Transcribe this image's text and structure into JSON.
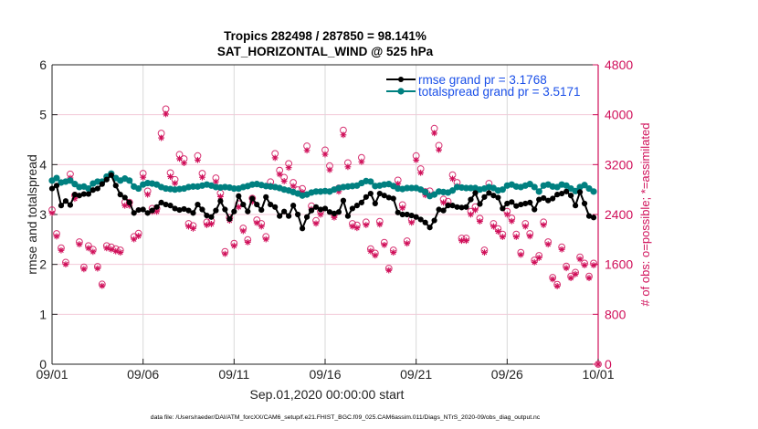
{
  "chart_data": {
    "type": "line",
    "title": [
      "Tropics 282498 / 287850 = 98.141%",
      "SAT_HORIZONTAL_WIND @ 525 hPa"
    ],
    "xlabel": "Sep.01,2020 00:00:00 start",
    "ylabel": "rmse and totalspread",
    "y2label": "# of obs: o=possible; *=assimilated",
    "footnote": "data file: /Users/raeder/DAI/ATM_forcXX/CAM6_setup/f.e21.FHIST_BGC.f09_025.CAM6assim.011/Diags_NTrS_2020-09/obs_diag_output.nc",
    "x_units": "days since Sep.01,2020 00:00:00",
    "xlim": [
      0,
      30
    ],
    "ylim": [
      0,
      6
    ],
    "y2lim": [
      0,
      4800
    ],
    "grid": true,
    "legend_position": "top-right",
    "xticks": [
      {
        "value": 0,
        "label": "09/01"
      },
      {
        "value": 5,
        "label": "09/06"
      },
      {
        "value": 10,
        "label": "09/11"
      },
      {
        "value": 15,
        "label": "09/16"
      },
      {
        "value": 20,
        "label": "09/21"
      },
      {
        "value": 25,
        "label": "09/26"
      },
      {
        "value": 30,
        "label": "10/01"
      }
    ],
    "yticks": [
      {
        "value": 0,
        "label": "0"
      },
      {
        "value": 1,
        "label": "1"
      },
      {
        "value": 2,
        "label": "2"
      },
      {
        "value": 3,
        "label": "3"
      },
      {
        "value": 4,
        "label": "4"
      },
      {
        "value": 5,
        "label": "5"
      },
      {
        "value": 6,
        "label": "6"
      }
    ],
    "y2ticks": [
      {
        "value": 0,
        "label": "0"
      },
      {
        "value": 800,
        "label": "800"
      },
      {
        "value": 1600,
        "label": "1600"
      },
      {
        "value": 2400,
        "label": "2400"
      },
      {
        "value": 3200,
        "label": "3200"
      },
      {
        "value": 4000,
        "label": "4000"
      },
      {
        "value": 4800,
        "label": "4800"
      }
    ],
    "x": [
      0,
      0.25,
      0.5,
      0.75,
      1,
      1.25,
      1.5,
      1.75,
      2,
      2.25,
      2.5,
      2.75,
      3,
      3.25,
      3.5,
      3.75,
      4,
      4.25,
      4.5,
      4.75,
      5,
      5.25,
      5.5,
      5.75,
      6,
      6.25,
      6.5,
      6.75,
      7,
      7.25,
      7.5,
      7.75,
      8,
      8.25,
      8.5,
      8.75,
      9,
      9.25,
      9.5,
      9.75,
      10,
      10.25,
      10.5,
      10.75,
      11,
      11.25,
      11.5,
      11.75,
      12,
      12.25,
      12.5,
      12.75,
      13,
      13.25,
      13.5,
      13.75,
      14,
      14.25,
      14.5,
      14.75,
      15,
      15.25,
      15.5,
      15.75,
      16,
      16.25,
      16.5,
      16.75,
      17,
      17.25,
      17.5,
      17.75,
      18,
      18.25,
      18.5,
      18.75,
      19,
      19.25,
      19.5,
      19.75,
      20,
      20.25,
      20.5,
      20.75,
      21,
      21.25,
      21.5,
      21.75,
      22,
      22.25,
      22.5,
      22.75,
      23,
      23.25,
      23.5,
      23.75,
      24,
      24.25,
      24.5,
      24.75,
      25,
      25.25,
      25.5,
      25.75,
      26,
      26.25,
      26.5,
      26.75,
      27,
      27.25,
      27.5,
      27.75,
      28,
      28.25,
      28.5,
      28.75,
      29,
      29.25,
      29.5,
      29.75,
      30
    ],
    "series": [
      {
        "name": "rmse",
        "legend_label": "rmse grand pr = 3.1768",
        "axis": "left",
        "color": "#000000",
        "values": [
          3.52,
          3.58,
          3.18,
          3.27,
          3.19,
          3.4,
          3.38,
          3.41,
          3.41,
          3.49,
          3.52,
          3.61,
          3.7,
          3.79,
          3.58,
          3.4,
          3.34,
          3.24,
          3.03,
          3.09,
          3.1,
          3.03,
          3.08,
          3.15,
          3.24,
          3.2,
          3.18,
          3.12,
          3.09,
          3.11,
          3.08,
          3.03,
          3.2,
          3.1,
          2.98,
          2.95,
          3.08,
          3.27,
          3.1,
          2.91,
          3.06,
          3.37,
          3.2,
          3.06,
          3.32,
          3.2,
          3.09,
          3.35,
          3.2,
          3.15,
          2.97,
          3.06,
          2.97,
          3.18,
          3.0,
          2.72,
          2.95,
          3.08,
          3.15,
          3.1,
          3.12,
          3.05,
          3.02,
          3.05,
          3.28,
          2.97,
          3.12,
          3.18,
          3.24,
          3.35,
          3.42,
          3.22,
          3.42,
          3.38,
          3.34,
          3.32,
          3.04,
          3.0,
          3.0,
          2.98,
          2.95,
          2.9,
          2.84,
          2.74,
          2.88,
          3.1,
          3.08,
          3.18,
          3.18,
          3.15,
          3.14,
          3.15,
          3.3,
          3.43,
          3.21,
          3.35,
          3.43,
          3.38,
          3.34,
          3.12,
          3.22,
          3.25,
          3.17,
          3.2,
          3.22,
          3.24,
          3.1,
          3.3,
          3.33,
          3.28,
          3.32,
          3.4,
          3.42,
          3.46,
          3.38,
          3.18,
          3.45,
          3.22,
          2.97,
          2.94,
          null
        ]
      },
      {
        "name": "totalspread",
        "legend_label": "totalspread grand pr = 3.5171",
        "axis": "left",
        "color": "#008080",
        "values": [
          3.68,
          3.73,
          3.64,
          3.66,
          3.68,
          3.61,
          3.55,
          3.56,
          3.52,
          3.62,
          3.66,
          3.66,
          3.76,
          3.82,
          3.73,
          3.68,
          3.72,
          3.68,
          3.56,
          3.52,
          3.6,
          3.63,
          3.62,
          3.6,
          3.55,
          3.52,
          3.51,
          3.5,
          3.51,
          3.52,
          3.55,
          3.56,
          3.56,
          3.58,
          3.6,
          3.58,
          3.55,
          3.54,
          3.55,
          3.54,
          3.52,
          3.52,
          3.55,
          3.57,
          3.6,
          3.61,
          3.59,
          3.57,
          3.56,
          3.55,
          3.53,
          3.5,
          3.48,
          3.45,
          3.42,
          3.38,
          3.4,
          3.44,
          3.46,
          3.46,
          3.47,
          3.46,
          3.5,
          3.53,
          3.55,
          3.56,
          3.57,
          3.58,
          3.63,
          3.67,
          3.66,
          3.57,
          3.58,
          3.6,
          3.61,
          3.57,
          3.52,
          3.51,
          3.53,
          3.53,
          3.53,
          3.5,
          3.45,
          3.37,
          3.4,
          3.46,
          3.45,
          3.44,
          3.48,
          3.55,
          3.54,
          3.53,
          3.53,
          3.53,
          3.5,
          3.52,
          3.55,
          3.53,
          3.48,
          3.5,
          3.58,
          3.6,
          3.56,
          3.55,
          3.58,
          3.61,
          3.55,
          3.46,
          3.58,
          3.6,
          3.56,
          3.55,
          3.6,
          3.58,
          3.52,
          3.47,
          3.55,
          3.59,
          3.52,
          3.46,
          null
        ]
      },
      {
        "name": "obs possible",
        "marker": "o",
        "axis": "right",
        "color": "#d0105a",
        "values": [
          2473,
          2092,
          1863,
          1634,
          3048,
          2707,
          1961,
          1556,
          1898,
          1839,
          1566,
          1283,
          1898,
          1878,
          1849,
          1829,
          2595,
          2595,
          2044,
          2097,
          3058,
          2775,
          2497,
          2497,
          3702,
          4092,
          3068,
          2960,
          3361,
          3292,
          2254,
          2220,
          3341,
          3058,
          2278,
          2293,
          2985,
          2741,
          1805,
          2351,
          1937,
          2571,
          2180,
          1995,
          2659,
          2312,
          2254,
          2044,
          2922,
          3376,
          3107,
          2995,
          3215,
          2912,
          2795,
          2815,
          3498,
          2536,
          2302,
          2448,
          3434,
          3180,
          2400,
          2824,
          3751,
          3229,
          2254,
          2229,
          3312,
          2278,
          1849,
          1780,
          2288,
          1951,
          1537,
          1829,
          2951,
          2556,
          1976,
          2317,
          3341,
          3132,
          2766,
          2776,
          3780,
          3507,
          2644,
          2610,
          3034,
          2912,
          2020,
          2020,
          2449,
          2522,
          2337,
          1829,
          2898,
          2254,
          2171,
          2083,
          2449,
          2341,
          2083,
          1790,
          2254,
          2093,
          1668,
          1741,
          2278,
          1961,
          1390,
          1278,
          1878,
          1571,
          1410,
          1473,
          1717,
          1619,
          1410,
          1619,
          0
        ]
      },
      {
        "name": "obs assimilated",
        "marker": "*",
        "axis": "right",
        "color": "#d0105a",
        "values": [
          2424,
          2050,
          1826,
          1601,
          2987,
          2653,
          1922,
          1525,
          1860,
          1802,
          1535,
          1257,
          1860,
          1840,
          1812,
          1792,
          2543,
          2543,
          2003,
          2055,
          2997,
          2720,
          2447,
          2447,
          3628,
          4010,
          3007,
          2901,
          3294,
          3226,
          2209,
          2176,
          3274,
          2997,
          2232,
          2247,
          2925,
          2686,
          1769,
          2304,
          1898,
          2520,
          2136,
          1955,
          2606,
          2266,
          2209,
          2003,
          2864,
          3308,
          3045,
          2935,
          3151,
          2854,
          2739,
          2759,
          3428,
          2485,
          2256,
          2399,
          3365,
          3116,
          2352,
          2768,
          3676,
          3164,
          2209,
          2184,
          3246,
          2232,
          1812,
          1744,
          2242,
          1912,
          1506,
          1792,
          2892,
          2505,
          1936,
          2271,
          3274,
          3069,
          2711,
          2720,
          3704,
          3437,
          2591,
          2558,
          2973,
          2854,
          1980,
          1980,
          2400,
          2472,
          2290,
          1792,
          2840,
          2209,
          2128,
          2041,
          2400,
          2294,
          2041,
          1754,
          2209,
          2051,
          1635,
          1706,
          2232,
          1922,
          1362,
          1252,
          1840,
          1540,
          1382,
          1444,
          1683,
          1587,
          1382,
          1587,
          0
        ]
      }
    ],
    "colors": {
      "right_axis": "#d0105a",
      "legend_text": "#1a4fe8",
      "grid_horizontal": "#f3c9d8",
      "grid_vertical": "#d9d9d9"
    }
  }
}
